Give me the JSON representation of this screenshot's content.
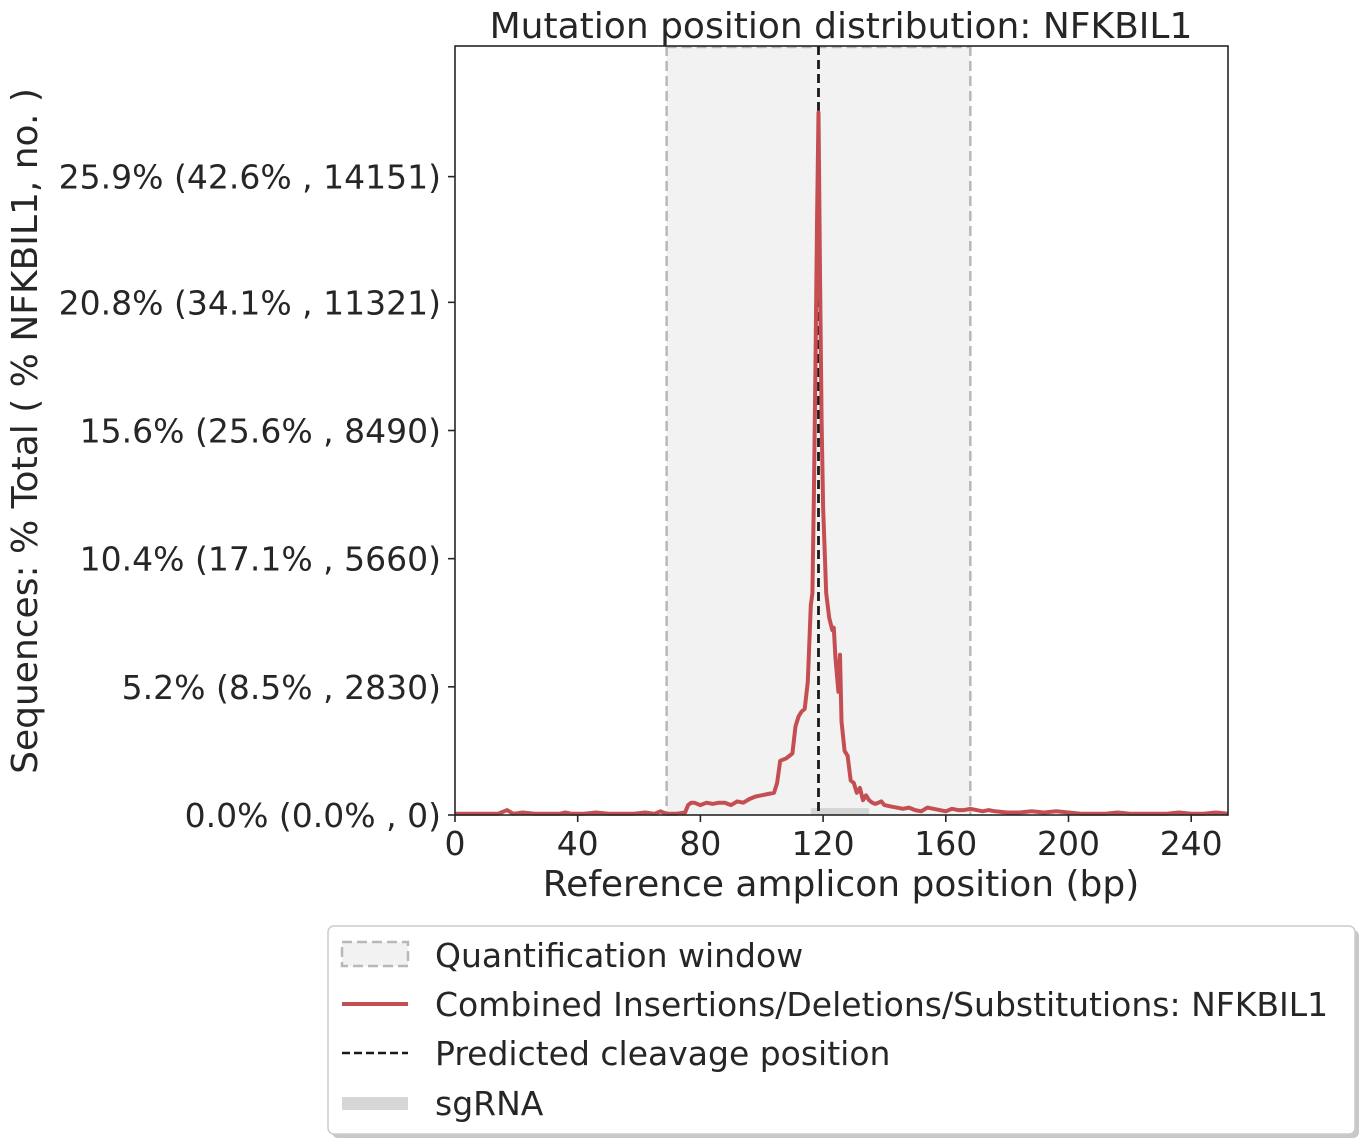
{
  "chart_data": {
    "type": "line",
    "title": "Mutation position distribution: NFKBIL1",
    "xlabel": "Reference amplicon position (bp)",
    "ylabel": "Sequences: % Total ( % NFKBIL1, no. )",
    "xlim": [
      0,
      252
    ],
    "ylim": [
      0,
      31.2
    ],
    "x_ticks": [
      0,
      40,
      80,
      120,
      160,
      200,
      240
    ],
    "y_ticks": [
      {
        "value": 0.0,
        "label": "0.0% (0.0% , 0)"
      },
      {
        "value": 5.2,
        "label": "5.2% (8.5% , 2830)"
      },
      {
        "value": 10.4,
        "label": "10.4% (17.1% , 5660)"
      },
      {
        "value": 15.6,
        "label": "15.6% (25.6% , 8490)"
      },
      {
        "value": 20.8,
        "label": "20.8% (34.1% , 11321)"
      },
      {
        "value": 25.9,
        "label": "25.9% (42.6% , 14151)"
      }
    ],
    "quantification_window": [
      69,
      168
    ],
    "predicted_cleavage_position": 118.5,
    "sgrna": [
      116,
      135
    ],
    "colors": {
      "line": "#c44e52",
      "window_fill": "#f2f2f2",
      "window_edge": "#b8b8b8",
      "cleavage": "#1a1a1a",
      "sgrna": "#d6d6d6"
    },
    "series": [
      {
        "name": "Combined Insertions/Deletions/Substitutions: NFKBIL1",
        "x": [
          0,
          5,
          10,
          14,
          17,
          19,
          22,
          26,
          30,
          34,
          36,
          38,
          42,
          46,
          50,
          54,
          58,
          62,
          65,
          67,
          69,
          72,
          75,
          76,
          77,
          78,
          80,
          82,
          84,
          86,
          88,
          90,
          92,
          94,
          96,
          98,
          100,
          102,
          104,
          105,
          106,
          108,
          110,
          111,
          112,
          113,
          114,
          115,
          116,
          116.5,
          117,
          117.5,
          118,
          118.5,
          119,
          119.5,
          120,
          121,
          122,
          123,
          123.5,
          124,
          125,
          125.5,
          126,
          127,
          128,
          129,
          130,
          131,
          132,
          133,
          134,
          135,
          136,
          137,
          138,
          139,
          140,
          142,
          144,
          146,
          148,
          150,
          152,
          154,
          156,
          158,
          160,
          162,
          164,
          166,
          168,
          170,
          172,
          174,
          176,
          180,
          184,
          188,
          192,
          196,
          200,
          204,
          208,
          212,
          216,
          220,
          224,
          228,
          232,
          236,
          240,
          244,
          248,
          252
        ],
        "values": [
          0.05,
          0.05,
          0.05,
          0.05,
          0.2,
          0.05,
          0.1,
          0.05,
          0.05,
          0.05,
          0.1,
          0.05,
          0.05,
          0.1,
          0.05,
          0.05,
          0.05,
          0.1,
          0.05,
          0.15,
          0.05,
          0.05,
          0.1,
          0.4,
          0.5,
          0.5,
          0.4,
          0.5,
          0.45,
          0.5,
          0.5,
          0.4,
          0.55,
          0.5,
          0.65,
          0.75,
          0.8,
          0.85,
          0.9,
          1.3,
          2.2,
          2.3,
          2.5,
          3.6,
          4.0,
          4.2,
          4.3,
          5.4,
          8.5,
          9.0,
          13.0,
          18.0,
          24.0,
          28.5,
          22.0,
          16.0,
          12.5,
          9.0,
          8.0,
          7.5,
          7.6,
          6.4,
          5.0,
          6.5,
          3.8,
          2.6,
          2.4,
          1.4,
          1.3,
          0.9,
          1.1,
          0.6,
          0.8,
          0.6,
          0.5,
          0.45,
          0.5,
          0.55,
          0.4,
          0.35,
          0.3,
          0.25,
          0.3,
          0.2,
          0.15,
          0.3,
          0.25,
          0.2,
          0.15,
          0.25,
          0.2,
          0.2,
          0.25,
          0.2,
          0.15,
          0.2,
          0.15,
          0.1,
          0.1,
          0.15,
          0.1,
          0.15,
          0.1,
          0.05,
          0.05,
          0.05,
          0.1,
          0.05,
          0.05,
          0.05,
          0.05,
          0.1,
          0.05,
          0.05,
          0.1,
          0.05
        ]
      }
    ],
    "legend": {
      "placement": "below",
      "entries": [
        {
          "label": "Quantification window",
          "kind": "patch"
        },
        {
          "label": "Combined Insertions/Deletions/Substitutions: NFKBIL1",
          "kind": "line"
        },
        {
          "label": "Predicted cleavage position",
          "kind": "dashed"
        },
        {
          "label": "sgRNA",
          "kind": "bar"
        }
      ]
    }
  }
}
